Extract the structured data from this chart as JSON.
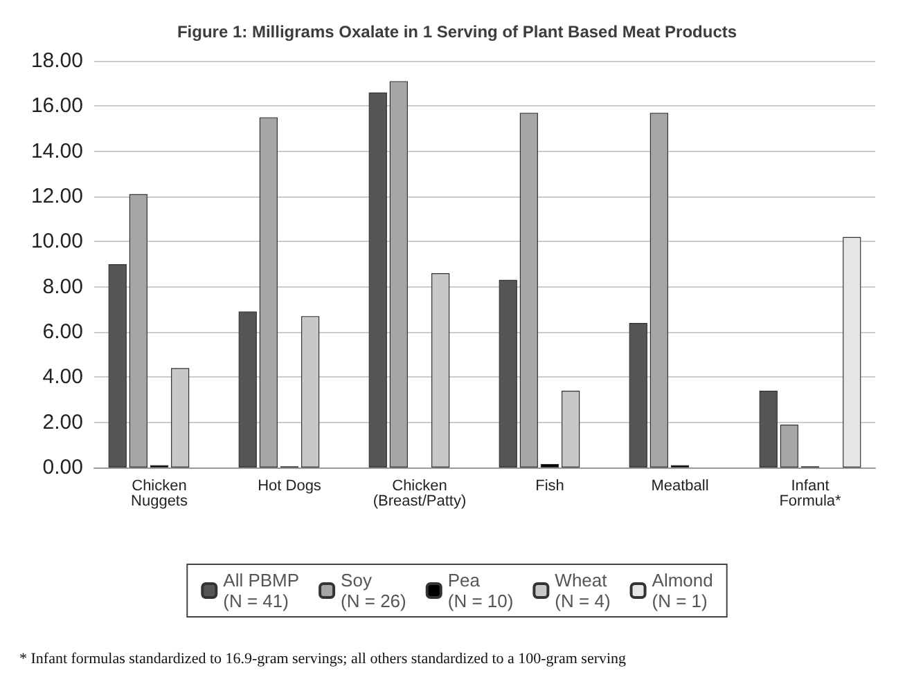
{
  "chart_data": {
    "type": "bar",
    "title": "Figure 1: Milligrams Oxalate in 1 Serving of Plant Based Meat Products",
    "categories": [
      "Chicken\nNuggets",
      "Hot Dogs",
      "Chicken\n(Breast/Patty)",
      "Fish",
      "Meatball",
      "Infant\nFormula*"
    ],
    "series": [
      {
        "name": "All PBMP\n(N = 41)",
        "color": "#555555",
        "values": [
          9.0,
          6.9,
          16.6,
          8.3,
          6.4,
          3.4
        ]
      },
      {
        "name": "Soy\n(N = 26)",
        "color": "#a6a6a6",
        "values": [
          12.1,
          15.5,
          17.1,
          15.7,
          15.7,
          1.9
        ]
      },
      {
        "name": "Pea\n(N = 10)",
        "color": "#000000",
        "values": [
          0.1,
          0.05,
          null,
          0.15,
          0.1,
          0.05
        ]
      },
      {
        "name": "Wheat\n(N = 4)",
        "color": "#c8c8c8",
        "values": [
          4.4,
          6.7,
          8.6,
          3.4,
          null,
          null
        ]
      },
      {
        "name": "Almond\n(N = 1)",
        "color": "#e6e6e6",
        "values": [
          null,
          null,
          null,
          null,
          null,
          10.2
        ]
      }
    ],
    "ylim": [
      0,
      18
    ],
    "yticks": [
      {
        "value": 0,
        "label": "0.00"
      },
      {
        "value": 2,
        "label": "2.00"
      },
      {
        "value": 4,
        "label": "4.00"
      },
      {
        "value": 6,
        "label": "6.00"
      },
      {
        "value": 8,
        "label": "8.00"
      },
      {
        "value": 10,
        "label": "10.00"
      },
      {
        "value": 12,
        "label": "12.00"
      },
      {
        "value": 14,
        "label": "14.00"
      },
      {
        "value": 16,
        "label": "16.00"
      },
      {
        "value": 18,
        "label": "18.00"
      }
    ],
    "grid": "y",
    "legend": "bottom",
    "annotations": [
      "* Infant formulas standardized to 16.9-gram servings; all others standardized to a 100-gram serving"
    ]
  }
}
